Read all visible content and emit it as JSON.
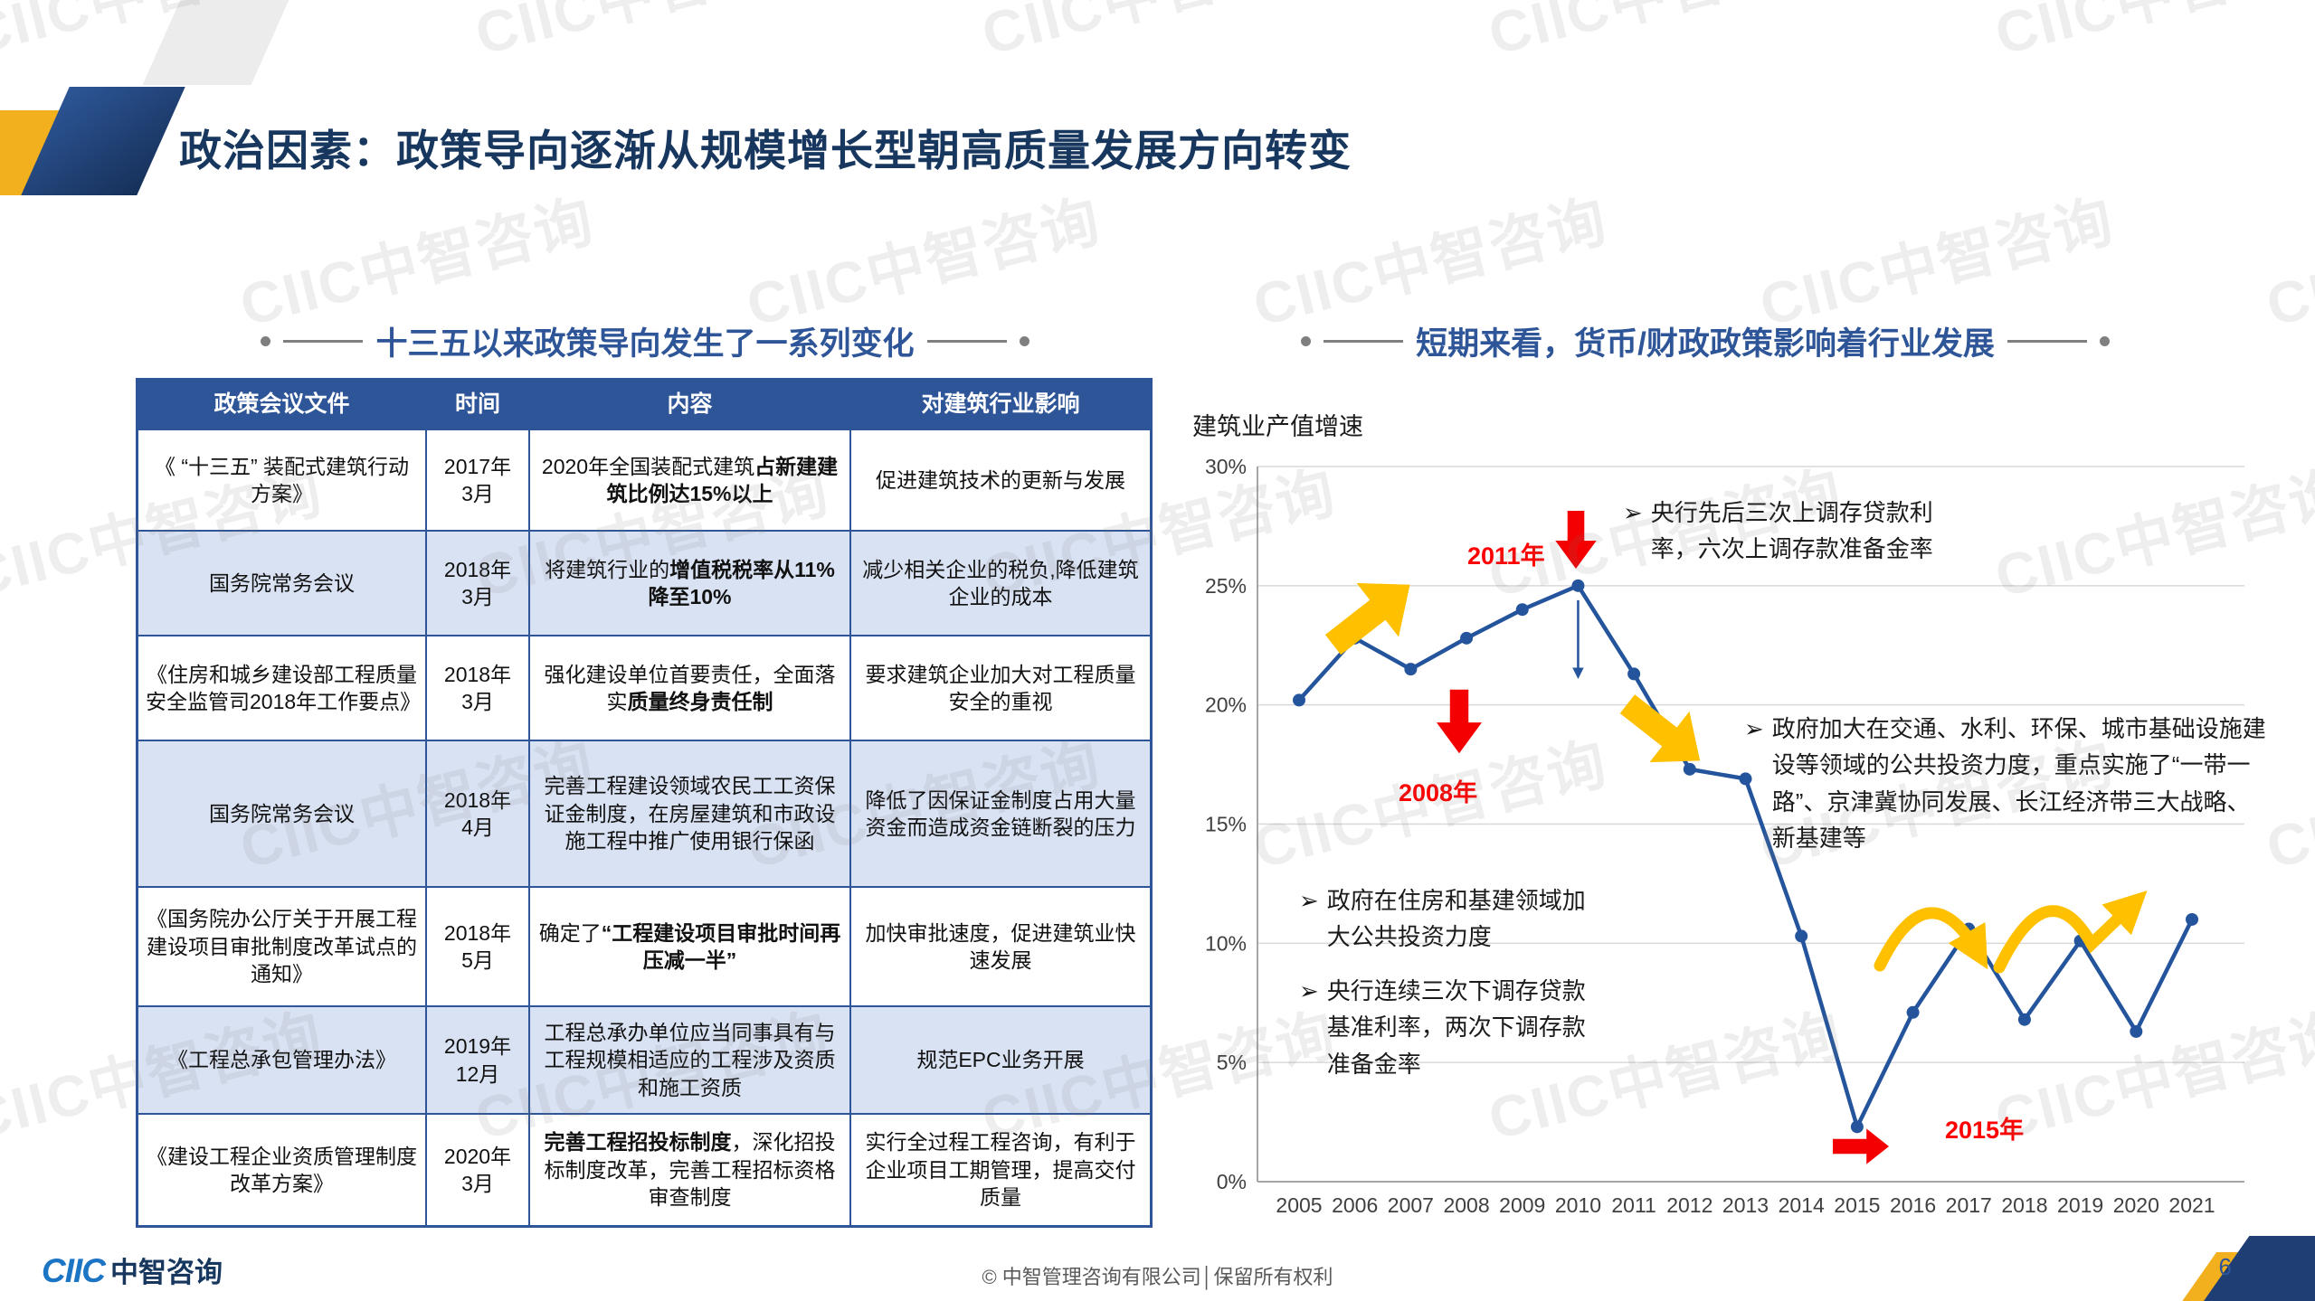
{
  "slide": {
    "title": "政治因素：政策导向逐渐从规模增长型朝高质量发展方向转变",
    "watermark": "CIIC中智咨询",
    "footer": {
      "logo_ciic": "CIIC",
      "logo_text": "中智咨询",
      "copyright": "© 中智管理咨询有限公司│保留所有权利",
      "page_number": "6"
    }
  },
  "colors": {
    "accent_blue": "#2E5597",
    "line_blue": "#24549C",
    "alert_red": "#FE0000",
    "arrow_orange": "#FFC000",
    "title_navy": "#17375E"
  },
  "left_panel": {
    "section_title": "十三五以来政策导向发生了一系列变化",
    "table": {
      "headers": [
        "政策会议文件",
        "时间",
        "内容",
        "对建筑行业影响"
      ],
      "rows": [
        {
          "document": "《 “十三五” 装配式建筑行动方案》",
          "time": "2017年3月",
          "content": [
            {
              "t": "2020年全国装配式建筑",
              "b": false
            },
            {
              "t": "占新建建筑比例达15%以上",
              "b": true
            }
          ],
          "impact": "促进建筑技术的更新与发展"
        },
        {
          "document": "国务院常务会议",
          "time": "2018年3月",
          "content": [
            {
              "t": "将建筑行业的",
              "b": false
            },
            {
              "t": "增值税税率从11%降至10%",
              "b": true
            }
          ],
          "impact": "减少相关企业的税负,降低建筑企业的成本"
        },
        {
          "document": "《住房和城乡建设部工程质量安全监管司2018年工作要点》",
          "time": "2018年3月",
          "content": [
            {
              "t": "强化建设单位首要责任，全面落实",
              "b": false
            },
            {
              "t": "质量终身责任制",
              "b": true
            }
          ],
          "impact": "要求建筑企业加大对工程质量安全的重视"
        },
        {
          "document": "国务院常务会议",
          "time": "2018年4月",
          "content": [
            {
              "t": "完善工程建设领域农民工工资保证金制度，在房屋建筑和市政设施工程中推广使用银行保函",
              "b": false
            }
          ],
          "impact": "降低了因保证金制度占用大量资金而造成资金链断裂的压力"
        },
        {
          "document": "《国务院办公厅关于开展工程建设项目审批制度改革试点的通知》",
          "time": "2018年5月",
          "content": [
            {
              "t": "确定了",
              "b": false
            },
            {
              "t": "“工程建设项目审批时间再压减一半”",
              "b": true
            }
          ],
          "impact": "加快审批速度，促进建筑业快速发展"
        },
        {
          "document": "《工程总承包管理办法》",
          "time": "2019年12月",
          "content": [
            {
              "t": "工程总承办单位应当同事具有与工程规模相适应的工程涉及资质和施工资质",
              "b": false
            }
          ],
          "impact": "规范EPC业务开展"
        },
        {
          "document": "《建设工程企业资质管理制度改革方案》",
          "time": "2020年3月",
          "content": [
            {
              "t": "完善工程招投标制度",
              "b": true
            },
            {
              "t": "，深化招投标制度改革，完善工程招标资格审查制度",
              "b": false
            }
          ],
          "impact": "实行全过程工程咨询，有利于企业项目工期管理，提高交付质量"
        }
      ]
    }
  },
  "right_panel": {
    "section_title": "短期来看，货币/财政政策影响着行业发展",
    "annotations": [
      {
        "marker": "➢",
        "text": "央行先后三次上调存贷款利率，六次上调存款准备金率"
      },
      {
        "marker": "➢",
        "text": "政府加大在交通、水利、环保、城市基础设施建设等领域的公共投资力度，重点实施了“一带一路”、京津冀协同发展、长江经济带三大战略、新基建等"
      },
      {
        "marker": "➢",
        "text": "政府在住房和基建领域加大公共投资力度"
      },
      {
        "marker": "➢",
        "text": "央行连续三次下调存贷款基准利率，两次下调存款准备金率"
      }
    ]
  },
  "chart_data": {
    "type": "line",
    "title": "建筑业产值增速",
    "x": [
      2005,
      2006,
      2007,
      2008,
      2009,
      2010,
      2011,
      2012,
      2013,
      2014,
      2015,
      2016,
      2017,
      2018,
      2019,
      2020,
      2021
    ],
    "series": [
      {
        "name": "建筑业产值增速",
        "values": [
          20.2,
          22.8,
          21.5,
          22.8,
          24.0,
          25.0,
          21.3,
          17.3,
          16.9,
          10.3,
          2.3,
          7.1,
          10.6,
          6.8,
          10.1,
          6.3,
          11.0
        ]
      }
    ],
    "ylim": [
      0,
      30
    ],
    "ytick_step": 5,
    "yticks": [
      "0%",
      "5%",
      "10%",
      "15%",
      "20%",
      "25%",
      "30%"
    ],
    "xlabel": "",
    "ylabel": "",
    "grid": true,
    "legend": false,
    "line_color": "#24549C",
    "annotations": [
      {
        "text": "2011年"
      },
      {
        "text": "2008年"
      },
      {
        "text": "2015年"
      }
    ]
  }
}
